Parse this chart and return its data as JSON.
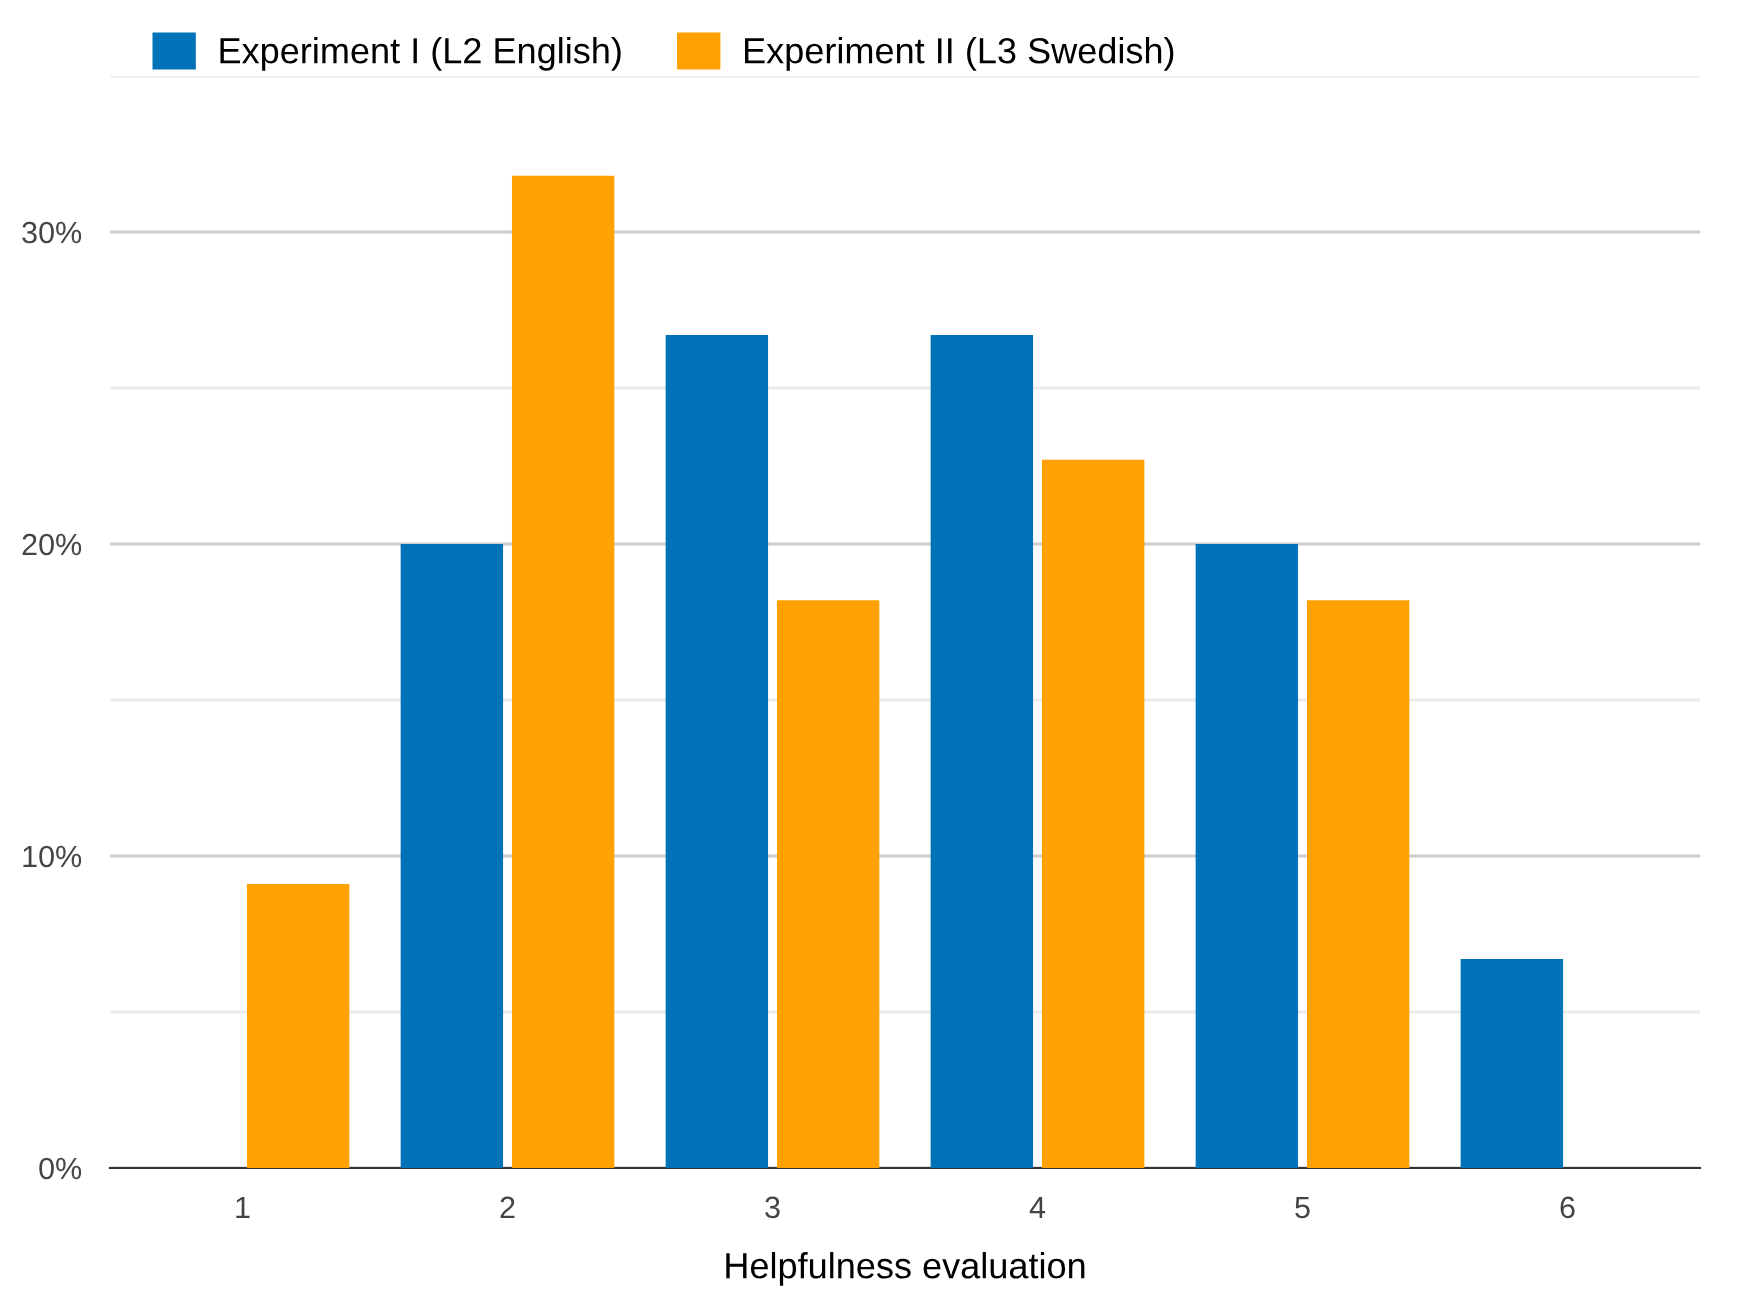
{
  "chart_data": {
    "type": "bar",
    "xlabel": "Helpfulness evaluation",
    "categories": [
      "1",
      "2",
      "3",
      "4",
      "5",
      "6"
    ],
    "series": [
      {
        "name": "Experiment I (L2 English)",
        "color": "#0072b8",
        "values": [
          null,
          20,
          26.7,
          26.7,
          20,
          6.7
        ]
      },
      {
        "name": "Experiment II (L3 Swedish)",
        "color": "#ffa100",
        "values": [
          9.1,
          31.8,
          18.2,
          22.7,
          18.2,
          null
        ]
      }
    ],
    "ylim": [
      0,
      35
    ],
    "yticks": [
      {
        "value": 0,
        "label": "0%"
      },
      {
        "value": 5,
        "label": null
      },
      {
        "value": 10,
        "label": "10%"
      },
      {
        "value": 15,
        "label": null
      },
      {
        "value": 20,
        "label": "20%"
      },
      {
        "value": 25,
        "label": null
      },
      {
        "value": 30,
        "label": "30%"
      },
      {
        "value": 35,
        "label": null
      }
    ],
    "grid": "y",
    "legend": "top left"
  }
}
